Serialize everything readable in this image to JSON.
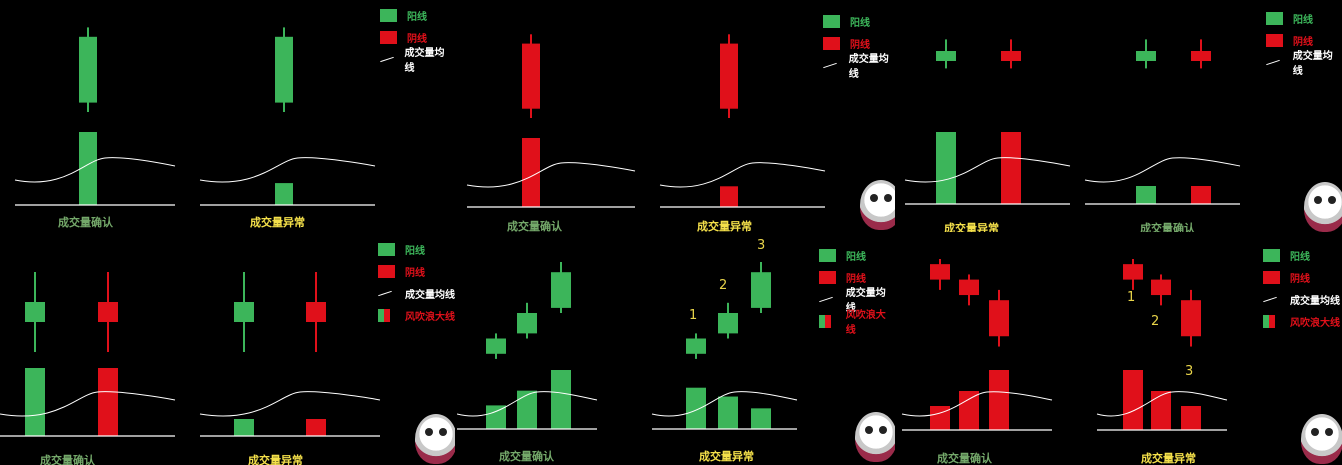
{
  "colors": {
    "yang": "#3cb55a",
    "yin": "#e0101a",
    "axis": "#ffffff",
    "ma": "#ffffff",
    "caption_green": "#74a86a",
    "caption_yellow": "#f4e04a"
  },
  "legend": {
    "yang": "阳线",
    "yin": "阴线",
    "ma": "成交量均线",
    "extra": "风吹浪大线"
  },
  "captions": {
    "confirm": "成交量确认",
    "abnormal": "成交量异常"
  },
  "annotations": {
    "one": "1",
    "two": "2",
    "three": "3"
  },
  "panels": [
    {
      "legend": [
        "yang",
        "yin",
        "ma"
      ],
      "left": {
        "caption": "confirm",
        "type": "yang"
      },
      "right": {
        "caption": "abnormal",
        "type": "yang"
      }
    },
    {
      "legend": [
        "yang",
        "yin",
        "ma"
      ],
      "left": {
        "caption": "confirm",
        "type": "yin"
      },
      "right": {
        "caption": "abnormal",
        "type": "yin"
      }
    },
    {
      "legend": [
        "yang",
        "yin",
        "ma"
      ],
      "left": {
        "caption": "abnormal"
      },
      "right": {
        "caption": "confirm"
      }
    },
    {
      "legend": [
        "yang",
        "yin",
        "ma",
        "extra"
      ],
      "left": {
        "caption": "confirm"
      },
      "right": {
        "caption": "abnormal"
      }
    },
    {
      "legend": [
        "yang",
        "yin",
        "ma",
        "extra"
      ],
      "left": {
        "caption": "confirm"
      },
      "right": {
        "caption": "abnormal"
      }
    },
    {
      "legend": [
        "yang",
        "yin",
        "ma",
        "extra"
      ],
      "left": {
        "caption": "confirm"
      },
      "right": {
        "caption": "abnormal"
      }
    }
  ],
  "chart_data": [
    {
      "type": "bar",
      "panel": 1,
      "title": "",
      "groups": [
        {
          "label": "成交量确认",
          "candles": [
            {
              "kind": "yang",
              "open": 1,
              "close": 8,
              "low": 0,
              "high": 9
            }
          ],
          "volumes": [
            10
          ]
        },
        {
          "label": "成交量异常",
          "candles": [
            {
              "kind": "yang",
              "open": 1,
              "close": 8,
              "low": 0,
              "high": 9
            }
          ],
          "volumes": [
            3
          ]
        }
      ]
    },
    {
      "type": "bar",
      "panel": 2,
      "title": "",
      "groups": [
        {
          "label": "成交量确认",
          "candles": [
            {
              "kind": "yin",
              "open": 8,
              "close": 1,
              "low": 0,
              "high": 9
            }
          ],
          "volumes": [
            10
          ]
        },
        {
          "label": "成交量异常",
          "candles": [
            {
              "kind": "yin",
              "open": 8,
              "close": 1,
              "low": 0,
              "high": 9
            }
          ],
          "volumes": [
            3
          ]
        }
      ]
    },
    {
      "type": "bar",
      "panel": 3,
      "title": "",
      "groups": [
        {
          "label": "成交量异常",
          "candles": [
            {
              "kind": "yang",
              "open": 4,
              "close": 5,
              "low": 2,
              "high": 7
            },
            {
              "kind": "yin",
              "open": 5,
              "close": 4,
              "low": 2,
              "high": 7
            }
          ],
          "volumes": [
            10,
            10
          ]
        },
        {
          "label": "成交量确认",
          "candles": [
            {
              "kind": "yang",
              "open": 4,
              "close": 5,
              "low": 2,
              "high": 7
            },
            {
              "kind": "yin",
              "open": 5,
              "close": 4,
              "low": 2,
              "high": 7
            }
          ],
          "volumes": [
            2.5,
            2.5
          ]
        }
      ]
    },
    {
      "type": "bar",
      "panel": 4,
      "title": "",
      "groups": [
        {
          "label": "成交量确认",
          "candles": [
            {
              "kind": "yang",
              "open": 3,
              "close": 5,
              "low": 0,
              "high": 8
            },
            {
              "kind": "yin",
              "open": 5,
              "close": 3,
              "low": 0,
              "high": 8
            }
          ],
          "volumes": [
            10,
            10
          ]
        },
        {
          "label": "成交量异常",
          "candles": [
            {
              "kind": "yang",
              "open": 3,
              "close": 5,
              "low": 0,
              "high": 8
            },
            {
              "kind": "yin",
              "open": 5,
              "close": 3,
              "low": 0,
              "high": 8
            }
          ],
          "volumes": [
            2.5,
            2.5
          ]
        }
      ]
    },
    {
      "type": "bar",
      "panel": 5,
      "title": "",
      "groups": [
        {
          "label": "成交量确认",
          "candles": [
            {
              "kind": "yang",
              "open": 1,
              "close": 2.5,
              "low": 0.5,
              "high": 3
            },
            {
              "kind": "yang",
              "open": 3,
              "close": 5,
              "low": 2.5,
              "high": 6
            },
            {
              "kind": "yang",
              "open": 5.5,
              "close": 9,
              "low": 5,
              "high": 10
            }
          ],
          "volumes": [
            4,
            6.5,
            10
          ]
        },
        {
          "label": "成交量异常",
          "candles": [
            {
              "kind": "yang",
              "open": 1,
              "close": 2.5,
              "low": 0.5,
              "high": 3
            },
            {
              "kind": "yang",
              "open": 3,
              "close": 5,
              "low": 2.5,
              "high": 6
            },
            {
              "kind": "yang",
              "open": 5.5,
              "close": 9,
              "low": 5,
              "high": 10
            }
          ],
          "volumes": [
            7,
            5.5,
            3.5
          ]
        }
      ]
    },
    {
      "type": "bar",
      "panel": 6,
      "title": "",
      "groups": [
        {
          "label": "成交量确认",
          "candles": [
            {
              "kind": "yin",
              "open": 9.5,
              "close": 8,
              "low": 7,
              "high": 10
            },
            {
              "kind": "yin",
              "open": 8,
              "close": 6.5,
              "low": 5.5,
              "high": 8.5
            },
            {
              "kind": "yin",
              "open": 6,
              "close": 2.5,
              "low": 1.5,
              "high": 7
            }
          ],
          "volumes": [
            4,
            6.5,
            10
          ]
        },
        {
          "label": "成交量异常",
          "candles": [
            {
              "kind": "yin",
              "open": 9.5,
              "close": 8,
              "low": 7,
              "high": 10
            },
            {
              "kind": "yin",
              "open": 8,
              "close": 6.5,
              "low": 5.5,
              "high": 8.5
            },
            {
              "kind": "yin",
              "open": 6,
              "close": 2.5,
              "low": 1.5,
              "high": 7
            }
          ],
          "volumes": [
            10,
            6.5,
            4
          ]
        }
      ]
    }
  ]
}
